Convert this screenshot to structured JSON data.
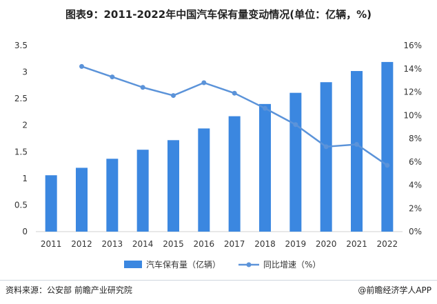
{
  "title": "图表9：2011-2022年中国汽车保有量变动情况(单位：亿辆，%)",
  "footer": {
    "source": "资料来源：公安部 前瞻产业研究院",
    "brand": "@前瞻经济学人APP"
  },
  "colors": {
    "bar": "#3b87e0",
    "line": "#5b93d9"
  },
  "chart_data": {
    "type": "bar",
    "categories": [
      "2011",
      "2012",
      "2013",
      "2014",
      "2015",
      "2016",
      "2017",
      "2018",
      "2019",
      "2020",
      "2021",
      "2022"
    ],
    "series": [
      {
        "name": "汽车保有量（亿辆）",
        "type": "bar",
        "axis": "left",
        "values": [
          1.06,
          1.2,
          1.37,
          1.54,
          1.72,
          1.94,
          2.17,
          2.4,
          2.61,
          2.81,
          3.02,
          3.19
        ]
      },
      {
        "name": "同比增速（%）",
        "type": "line",
        "axis": "right",
        "values": [
          null,
          14.2,
          13.3,
          12.4,
          11.7,
          12.8,
          11.9,
          10.6,
          9.2,
          7.3,
          7.5,
          5.7
        ]
      }
    ],
    "y_left": {
      "ylim": [
        0,
        3.5
      ],
      "ticks": [
        "0",
        "0.5",
        "1",
        "1.5",
        "2",
        "2.5",
        "3",
        "3.5"
      ]
    },
    "y_right": {
      "ylim": [
        0,
        16
      ],
      "ticks": [
        "0%",
        "2%",
        "4%",
        "6%",
        "8%",
        "10%",
        "12%",
        "14%",
        "16%"
      ]
    },
    "grid": false,
    "legend_position": "bottom"
  }
}
